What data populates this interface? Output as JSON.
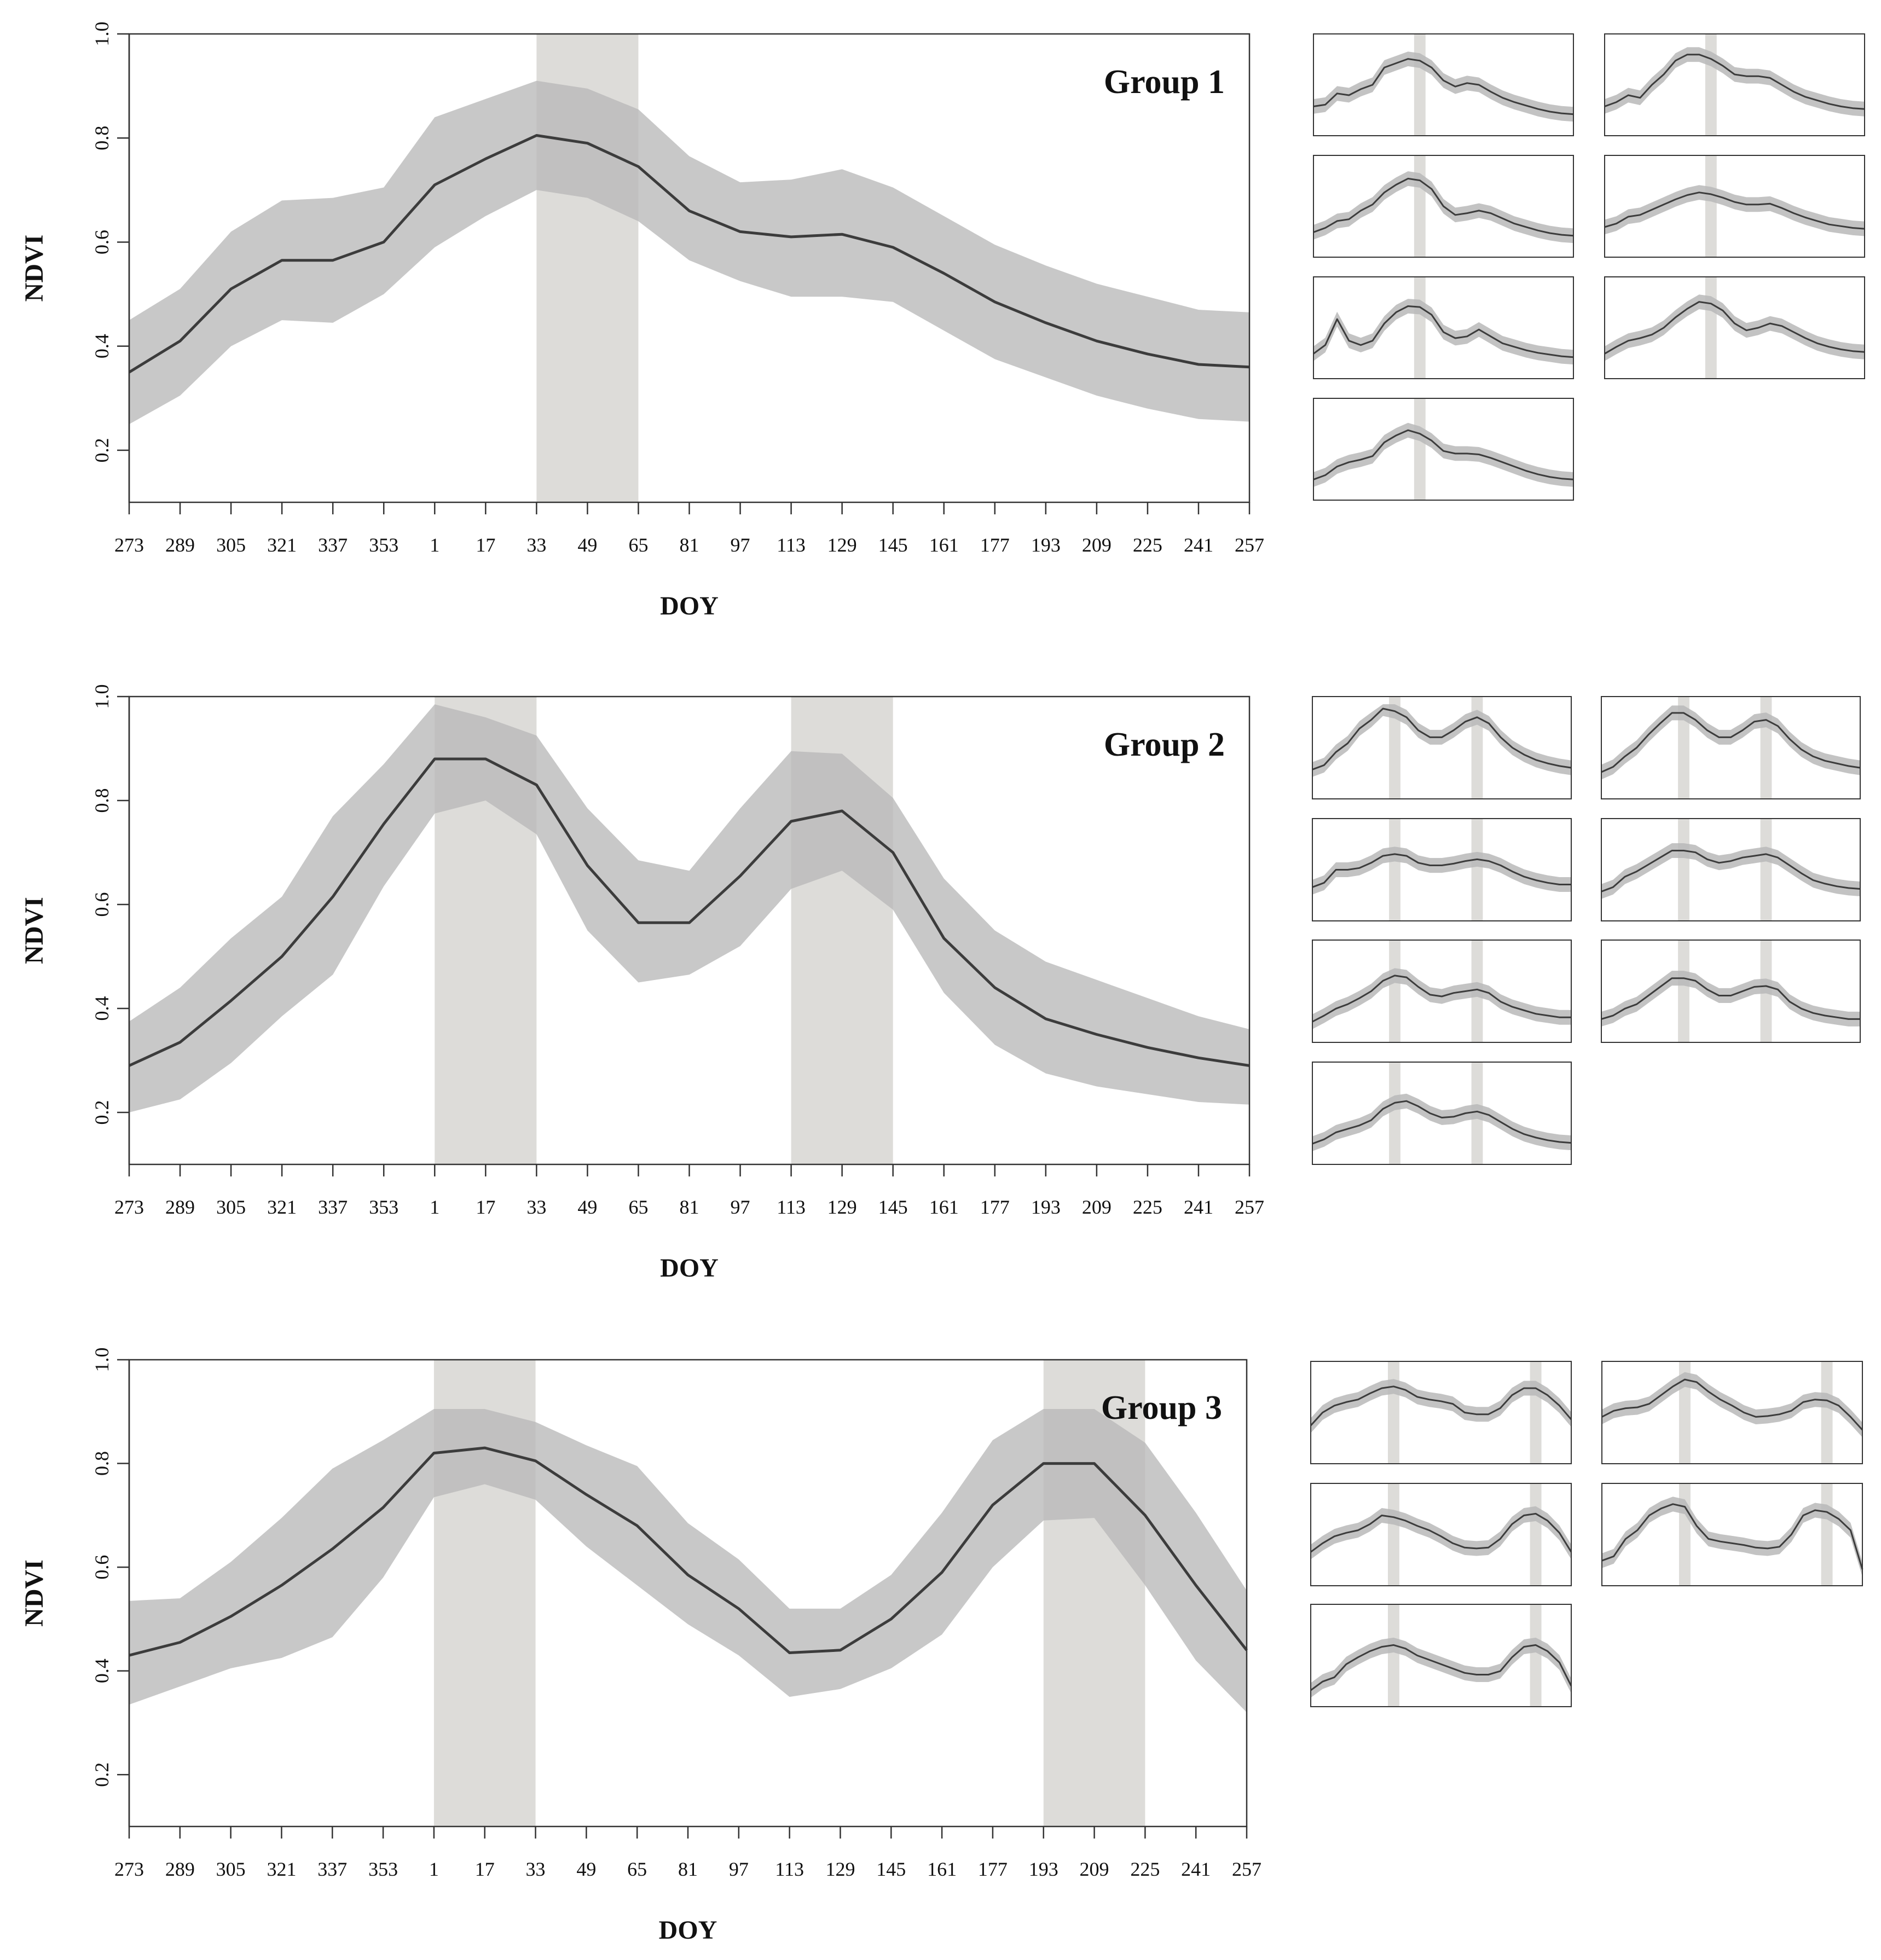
{
  "colors": {
    "band": "#b8b8b8",
    "highlight": "#dddcd9",
    "line": "#3c3c3c",
    "frame": "#333333",
    "text": "#111111"
  },
  "chart_data": [
    {
      "type": "line",
      "title": "Group 1",
      "xlabel": "DOY",
      "ylabel": "NDVI",
      "ylim": [
        0.1,
        1.0
      ],
      "yticks": [
        "0.2",
        "0.4",
        "0.6",
        "0.8",
        "1.0"
      ],
      "x": [
        "273",
        "289",
        "305",
        "321",
        "337",
        "353",
        "1",
        "17",
        "33",
        "49",
        "65",
        "81",
        "97",
        "113",
        "129",
        "145",
        "161",
        "177",
        "193",
        "209",
        "225",
        "241",
        "257"
      ],
      "mean": [
        0.35,
        0.41,
        0.51,
        0.565,
        0.565,
        0.6,
        0.71,
        0.76,
        0.805,
        0.79,
        0.745,
        0.66,
        0.62,
        0.61,
        0.615,
        0.59,
        0.54,
        0.485,
        0.445,
        0.41,
        0.385,
        0.365,
        0.36
      ],
      "upper": [
        0.45,
        0.51,
        0.62,
        0.68,
        0.685,
        0.705,
        0.84,
        0.875,
        0.91,
        0.895,
        0.855,
        0.765,
        0.715,
        0.72,
        0.74,
        0.705,
        0.65,
        0.595,
        0.555,
        0.52,
        0.495,
        0.47,
        0.465
      ],
      "lower": [
        0.25,
        0.305,
        0.4,
        0.45,
        0.445,
        0.5,
        0.59,
        0.65,
        0.7,
        0.685,
        0.64,
        0.565,
        0.525,
        0.495,
        0.495,
        0.485,
        0.43,
        0.375,
        0.34,
        0.305,
        0.28,
        0.26,
        0.255
      ],
      "highlights": [
        [
          8,
          10
        ]
      ],
      "small_panels": [
        {
          "mean": [
            0.25,
            0.27,
            0.4,
            0.38,
            0.45,
            0.5,
            0.7,
            0.75,
            0.8,
            0.78,
            0.7,
            0.55,
            0.48,
            0.52,
            0.5,
            0.42,
            0.35,
            0.3,
            0.26,
            0.22,
            0.19,
            0.17,
            0.16
          ]
        },
        {
          "mean": [
            0.25,
            0.3,
            0.38,
            0.35,
            0.5,
            0.62,
            0.78,
            0.85,
            0.85,
            0.8,
            0.72,
            0.62,
            0.6,
            0.6,
            0.58,
            0.5,
            0.42,
            0.36,
            0.32,
            0.28,
            0.25,
            0.23,
            0.22
          ]
        },
        {
          "mean": [
            0.2,
            0.25,
            0.33,
            0.35,
            0.45,
            0.52,
            0.66,
            0.75,
            0.82,
            0.8,
            0.7,
            0.5,
            0.4,
            0.42,
            0.45,
            0.42,
            0.36,
            0.3,
            0.26,
            0.22,
            0.19,
            0.17,
            0.16
          ]
        },
        {
          "mean": [
            0.26,
            0.3,
            0.38,
            0.4,
            0.46,
            0.52,
            0.58,
            0.63,
            0.66,
            0.64,
            0.6,
            0.55,
            0.52,
            0.52,
            0.53,
            0.48,
            0.42,
            0.37,
            0.33,
            0.29,
            0.27,
            0.25,
            0.24
          ]
        },
        {
          "mean": [
            0.2,
            0.3,
            0.6,
            0.35,
            0.3,
            0.35,
            0.55,
            0.68,
            0.75,
            0.74,
            0.65,
            0.45,
            0.38,
            0.4,
            0.48,
            0.4,
            0.32,
            0.28,
            0.24,
            0.21,
            0.19,
            0.17,
            0.16
          ]
        },
        {
          "mean": [
            0.2,
            0.28,
            0.35,
            0.38,
            0.42,
            0.5,
            0.62,
            0.72,
            0.8,
            0.78,
            0.7,
            0.55,
            0.47,
            0.5,
            0.55,
            0.52,
            0.45,
            0.38,
            0.32,
            0.28,
            0.25,
            0.23,
            0.22
          ]
        },
        {
          "mean": [
            0.15,
            0.2,
            0.3,
            0.35,
            0.38,
            0.42,
            0.58,
            0.66,
            0.72,
            0.68,
            0.6,
            0.48,
            0.45,
            0.45,
            0.44,
            0.4,
            0.35,
            0.3,
            0.25,
            0.21,
            0.18,
            0.16,
            0.15
          ]
        }
      ]
    },
    {
      "type": "line",
      "title": "Group 2",
      "xlabel": "DOY",
      "ylabel": "NDVI",
      "ylim": [
        0.1,
        1.0
      ],
      "yticks": [
        "0.2",
        "0.4",
        "0.6",
        "0.8",
        "1.0"
      ],
      "x": [
        "273",
        "289",
        "305",
        "321",
        "337",
        "353",
        "1",
        "17",
        "33",
        "49",
        "65",
        "81",
        "97",
        "113",
        "129",
        "145",
        "161",
        "177",
        "193",
        "209",
        "225",
        "241",
        "257"
      ],
      "mean": [
        0.29,
        0.335,
        0.415,
        0.5,
        0.615,
        0.755,
        0.88,
        0.88,
        0.83,
        0.675,
        0.565,
        0.565,
        0.655,
        0.76,
        0.78,
        0.7,
        0.535,
        0.44,
        0.38,
        0.35,
        0.325,
        0.305,
        0.29
      ],
      "upper": [
        0.375,
        0.44,
        0.535,
        0.615,
        0.77,
        0.87,
        0.985,
        0.96,
        0.925,
        0.785,
        0.685,
        0.665,
        0.785,
        0.895,
        0.89,
        0.805,
        0.65,
        0.55,
        0.49,
        0.455,
        0.42,
        0.385,
        0.36
      ],
      "lower": [
        0.2,
        0.225,
        0.295,
        0.385,
        0.465,
        0.635,
        0.775,
        0.8,
        0.735,
        0.55,
        0.45,
        0.465,
        0.52,
        0.63,
        0.665,
        0.59,
        0.43,
        0.33,
        0.275,
        0.25,
        0.235,
        0.22,
        0.215
      ],
      "highlights": [
        [
          6,
          8
        ],
        [
          13,
          15
        ]
      ],
      "small_panels": [
        {
          "mean": [
            0.25,
            0.3,
            0.45,
            0.55,
            0.72,
            0.82,
            0.95,
            0.92,
            0.85,
            0.7,
            0.62,
            0.62,
            0.7,
            0.8,
            0.85,
            0.78,
            0.62,
            0.5,
            0.42,
            0.36,
            0.32,
            0.29,
            0.27
          ]
        },
        {
          "mean": [
            0.22,
            0.28,
            0.4,
            0.5,
            0.65,
            0.78,
            0.9,
            0.9,
            0.82,
            0.7,
            0.62,
            0.62,
            0.7,
            0.8,
            0.82,
            0.75,
            0.6,
            0.48,
            0.4,
            0.35,
            0.32,
            0.29,
            0.27
          ]
        },
        {
          "mean": [
            0.3,
            0.35,
            0.5,
            0.5,
            0.52,
            0.58,
            0.66,
            0.68,
            0.66,
            0.58,
            0.55,
            0.55,
            0.57,
            0.6,
            0.62,
            0.6,
            0.55,
            0.48,
            0.42,
            0.38,
            0.35,
            0.33,
            0.33
          ]
        },
        {
          "mean": [
            0.25,
            0.3,
            0.42,
            0.48,
            0.56,
            0.64,
            0.72,
            0.72,
            0.7,
            0.62,
            0.58,
            0.6,
            0.64,
            0.66,
            0.68,
            0.64,
            0.55,
            0.46,
            0.38,
            0.34,
            0.31,
            0.29,
            0.28
          ]
        },
        {
          "mean": [
            0.15,
            0.22,
            0.3,
            0.35,
            0.42,
            0.5,
            0.62,
            0.68,
            0.66,
            0.55,
            0.46,
            0.44,
            0.48,
            0.5,
            0.52,
            0.48,
            0.38,
            0.32,
            0.28,
            0.24,
            0.22,
            0.2,
            0.2
          ]
        },
        {
          "mean": [
            0.18,
            0.22,
            0.3,
            0.35,
            0.45,
            0.55,
            0.65,
            0.65,
            0.62,
            0.52,
            0.45,
            0.45,
            0.5,
            0.55,
            0.56,
            0.52,
            0.38,
            0.3,
            0.25,
            0.22,
            0.2,
            0.18,
            0.18
          ]
        },
        {
          "mean": [
            0.15,
            0.2,
            0.28,
            0.32,
            0.36,
            0.42,
            0.55,
            0.62,
            0.64,
            0.58,
            0.5,
            0.45,
            0.46,
            0.5,
            0.52,
            0.48,
            0.4,
            0.32,
            0.26,
            0.22,
            0.19,
            0.17,
            0.16
          ]
        }
      ]
    },
    {
      "type": "line",
      "title": "Group 3",
      "xlabel": "DOY",
      "ylabel": "NDVI",
      "ylim": [
        0.1,
        1.0
      ],
      "yticks": [
        "0.2",
        "0.4",
        "0.6",
        "0.8",
        "1.0"
      ],
      "x": [
        "273",
        "289",
        "305",
        "321",
        "337",
        "353",
        "1",
        "17",
        "33",
        "49",
        "65",
        "81",
        "97",
        "113",
        "129",
        "145",
        "161",
        "177",
        "193",
        "209",
        "225",
        "241",
        "257"
      ],
      "mean": [
        0.43,
        0.455,
        0.505,
        0.565,
        0.635,
        0.715,
        0.82,
        0.83,
        0.805,
        0.74,
        0.68,
        0.585,
        0.52,
        0.435,
        0.44,
        0.5,
        0.59,
        0.72,
        0.8,
        0.8,
        0.7,
        0.565,
        0.44
      ],
      "upper": [
        0.535,
        0.54,
        0.61,
        0.695,
        0.79,
        0.845,
        0.905,
        0.905,
        0.88,
        0.835,
        0.795,
        0.685,
        0.615,
        0.52,
        0.52,
        0.585,
        0.705,
        0.845,
        0.905,
        0.905,
        0.84,
        0.705,
        0.555
      ],
      "lower": [
        0.335,
        0.37,
        0.405,
        0.425,
        0.465,
        0.58,
        0.735,
        0.76,
        0.73,
        0.64,
        0.565,
        0.49,
        0.43,
        0.35,
        0.365,
        0.405,
        0.47,
        0.6,
        0.69,
        0.695,
        0.565,
        0.42,
        0.32
      ],
      "highlights": [
        [
          6,
          8
        ],
        [
          18,
          20
        ]
      ],
      "small_panels": [
        {
          "mean": [
            0.35,
            0.5,
            0.58,
            0.62,
            0.65,
            0.72,
            0.78,
            0.8,
            0.76,
            0.68,
            0.65,
            0.63,
            0.6,
            0.5,
            0.48,
            0.48,
            0.55,
            0.7,
            0.78,
            0.78,
            0.7,
            0.58,
            0.42
          ]
        },
        {
          "mean": [
            0.45,
            0.52,
            0.55,
            0.56,
            0.6,
            0.7,
            0.8,
            0.88,
            0.85,
            0.74,
            0.65,
            0.58,
            0.5,
            0.45,
            0.46,
            0.48,
            0.52,
            0.62,
            0.65,
            0.64,
            0.58,
            0.45,
            0.3
          ]
        },
        {
          "mean": [
            0.3,
            0.4,
            0.48,
            0.52,
            0.55,
            0.62,
            0.72,
            0.7,
            0.66,
            0.6,
            0.55,
            0.48,
            0.4,
            0.35,
            0.34,
            0.35,
            0.45,
            0.62,
            0.72,
            0.74,
            0.66,
            0.52,
            0.3
          ]
        },
        {
          "mean": [
            0.2,
            0.25,
            0.45,
            0.55,
            0.72,
            0.8,
            0.85,
            0.82,
            0.6,
            0.45,
            0.42,
            0.4,
            0.38,
            0.35,
            0.34,
            0.36,
            0.5,
            0.72,
            0.78,
            0.76,
            0.68,
            0.55,
            0.1
          ]
        },
        {
          "mean": [
            0.1,
            0.2,
            0.25,
            0.4,
            0.48,
            0.55,
            0.6,
            0.62,
            0.58,
            0.5,
            0.45,
            0.4,
            0.35,
            0.3,
            0.28,
            0.28,
            0.32,
            0.48,
            0.6,
            0.62,
            0.55,
            0.42,
            0.15
          ]
        }
      ]
    }
  ]
}
